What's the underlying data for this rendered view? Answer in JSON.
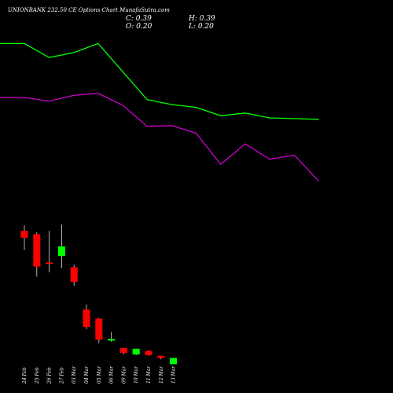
{
  "header": {
    "title": "UNIONBANK 232.50  CE Options  Chart MunafaSutra.com",
    "open": "O: 0.20",
    "high": "H: 0.39",
    "low": "L: 0.20",
    "close": "C: 0.39"
  },
  "colors": {
    "background": "#000000",
    "up": "#00ff00",
    "down": "#ff0000",
    "line_upper": "#00ff00",
    "line_lower": "#cc00cc",
    "text": "#ffffff"
  },
  "chart_data": {
    "type": "candlestick",
    "title": "UNIONBANK 232.50  CE Options  Chart MunafaSutra.com",
    "categories": [
      "24 Feb",
      "25 Feb",
      "26 Feb",
      "27 Feb",
      "03 Mar",
      "04 Mar",
      "05 Mar",
      "06 Mar",
      "09 Mar",
      "10 Mar",
      "11 Mar",
      "12 Mar",
      "13 Mar"
    ],
    "ohlc": [
      {
        "open": 3.55,
        "high": 3.95,
        "low": 2.2,
        "close": 3.05
      },
      {
        "open": 3.3,
        "high": 3.45,
        "low": 0.3,
        "close": 1.0
      },
      {
        "open": 1.3,
        "high": 3.55,
        "low": 0.6,
        "close": 1.2
      },
      {
        "open": 1.75,
        "high": 4.0,
        "low": 0.9,
        "close": 2.45
      },
      {
        "open": 0.95,
        "high": 1.15,
        "low": -0.35,
        "close": -0.1
      },
      {
        "open": -2.05,
        "high": -1.7,
        "low": -3.45,
        "close": -3.3
      },
      {
        "open": -2.7,
        "high": -2.65,
        "low": -4.45,
        "close": -4.2
      },
      {
        "open": -4.25,
        "high": -3.65,
        "low": -4.35,
        "close": -4.15
      },
      {
        "open": -4.8,
        "high": -4.8,
        "low": -5.25,
        "close": -5.15
      },
      {
        "open": -5.25,
        "high": -4.9,
        "low": -5.3,
        "close": -4.85
      },
      {
        "open": -5.0,
        "high": -4.95,
        "low": -5.35,
        "close": -5.3
      },
      {
        "open": -5.35,
        "high": -5.45,
        "low": -5.6,
        "close": -5.5
      },
      {
        "open": -5.95,
        "high": -5.5,
        "low": -5.95,
        "close": -5.5
      }
    ],
    "overlays": [
      {
        "color": "#00ff00",
        "x": [
          0,
          1,
          2,
          3,
          4,
          5,
          6,
          7,
          8,
          9,
          10,
          11,
          12,
          13
        ],
        "y": [
          16.9,
          16.9,
          15.9,
          16.25,
          16.9,
          14.9,
          12.9,
          12.55,
          12.35,
          11.75,
          11.95,
          11.6,
          11.55,
          11.5
        ]
      },
      {
        "color": "#cc00cc",
        "x": [
          0,
          1,
          2,
          3,
          4,
          5,
          6,
          7,
          8,
          9,
          10,
          11,
          12,
          13
        ],
        "y": [
          13.05,
          13.05,
          12.8,
          13.2,
          13.35,
          12.5,
          11.0,
          11.05,
          10.5,
          8.3,
          9.75,
          8.65,
          8.95,
          7.1
        ]
      }
    ],
    "ylim": [
      -8,
      20
    ]
  }
}
